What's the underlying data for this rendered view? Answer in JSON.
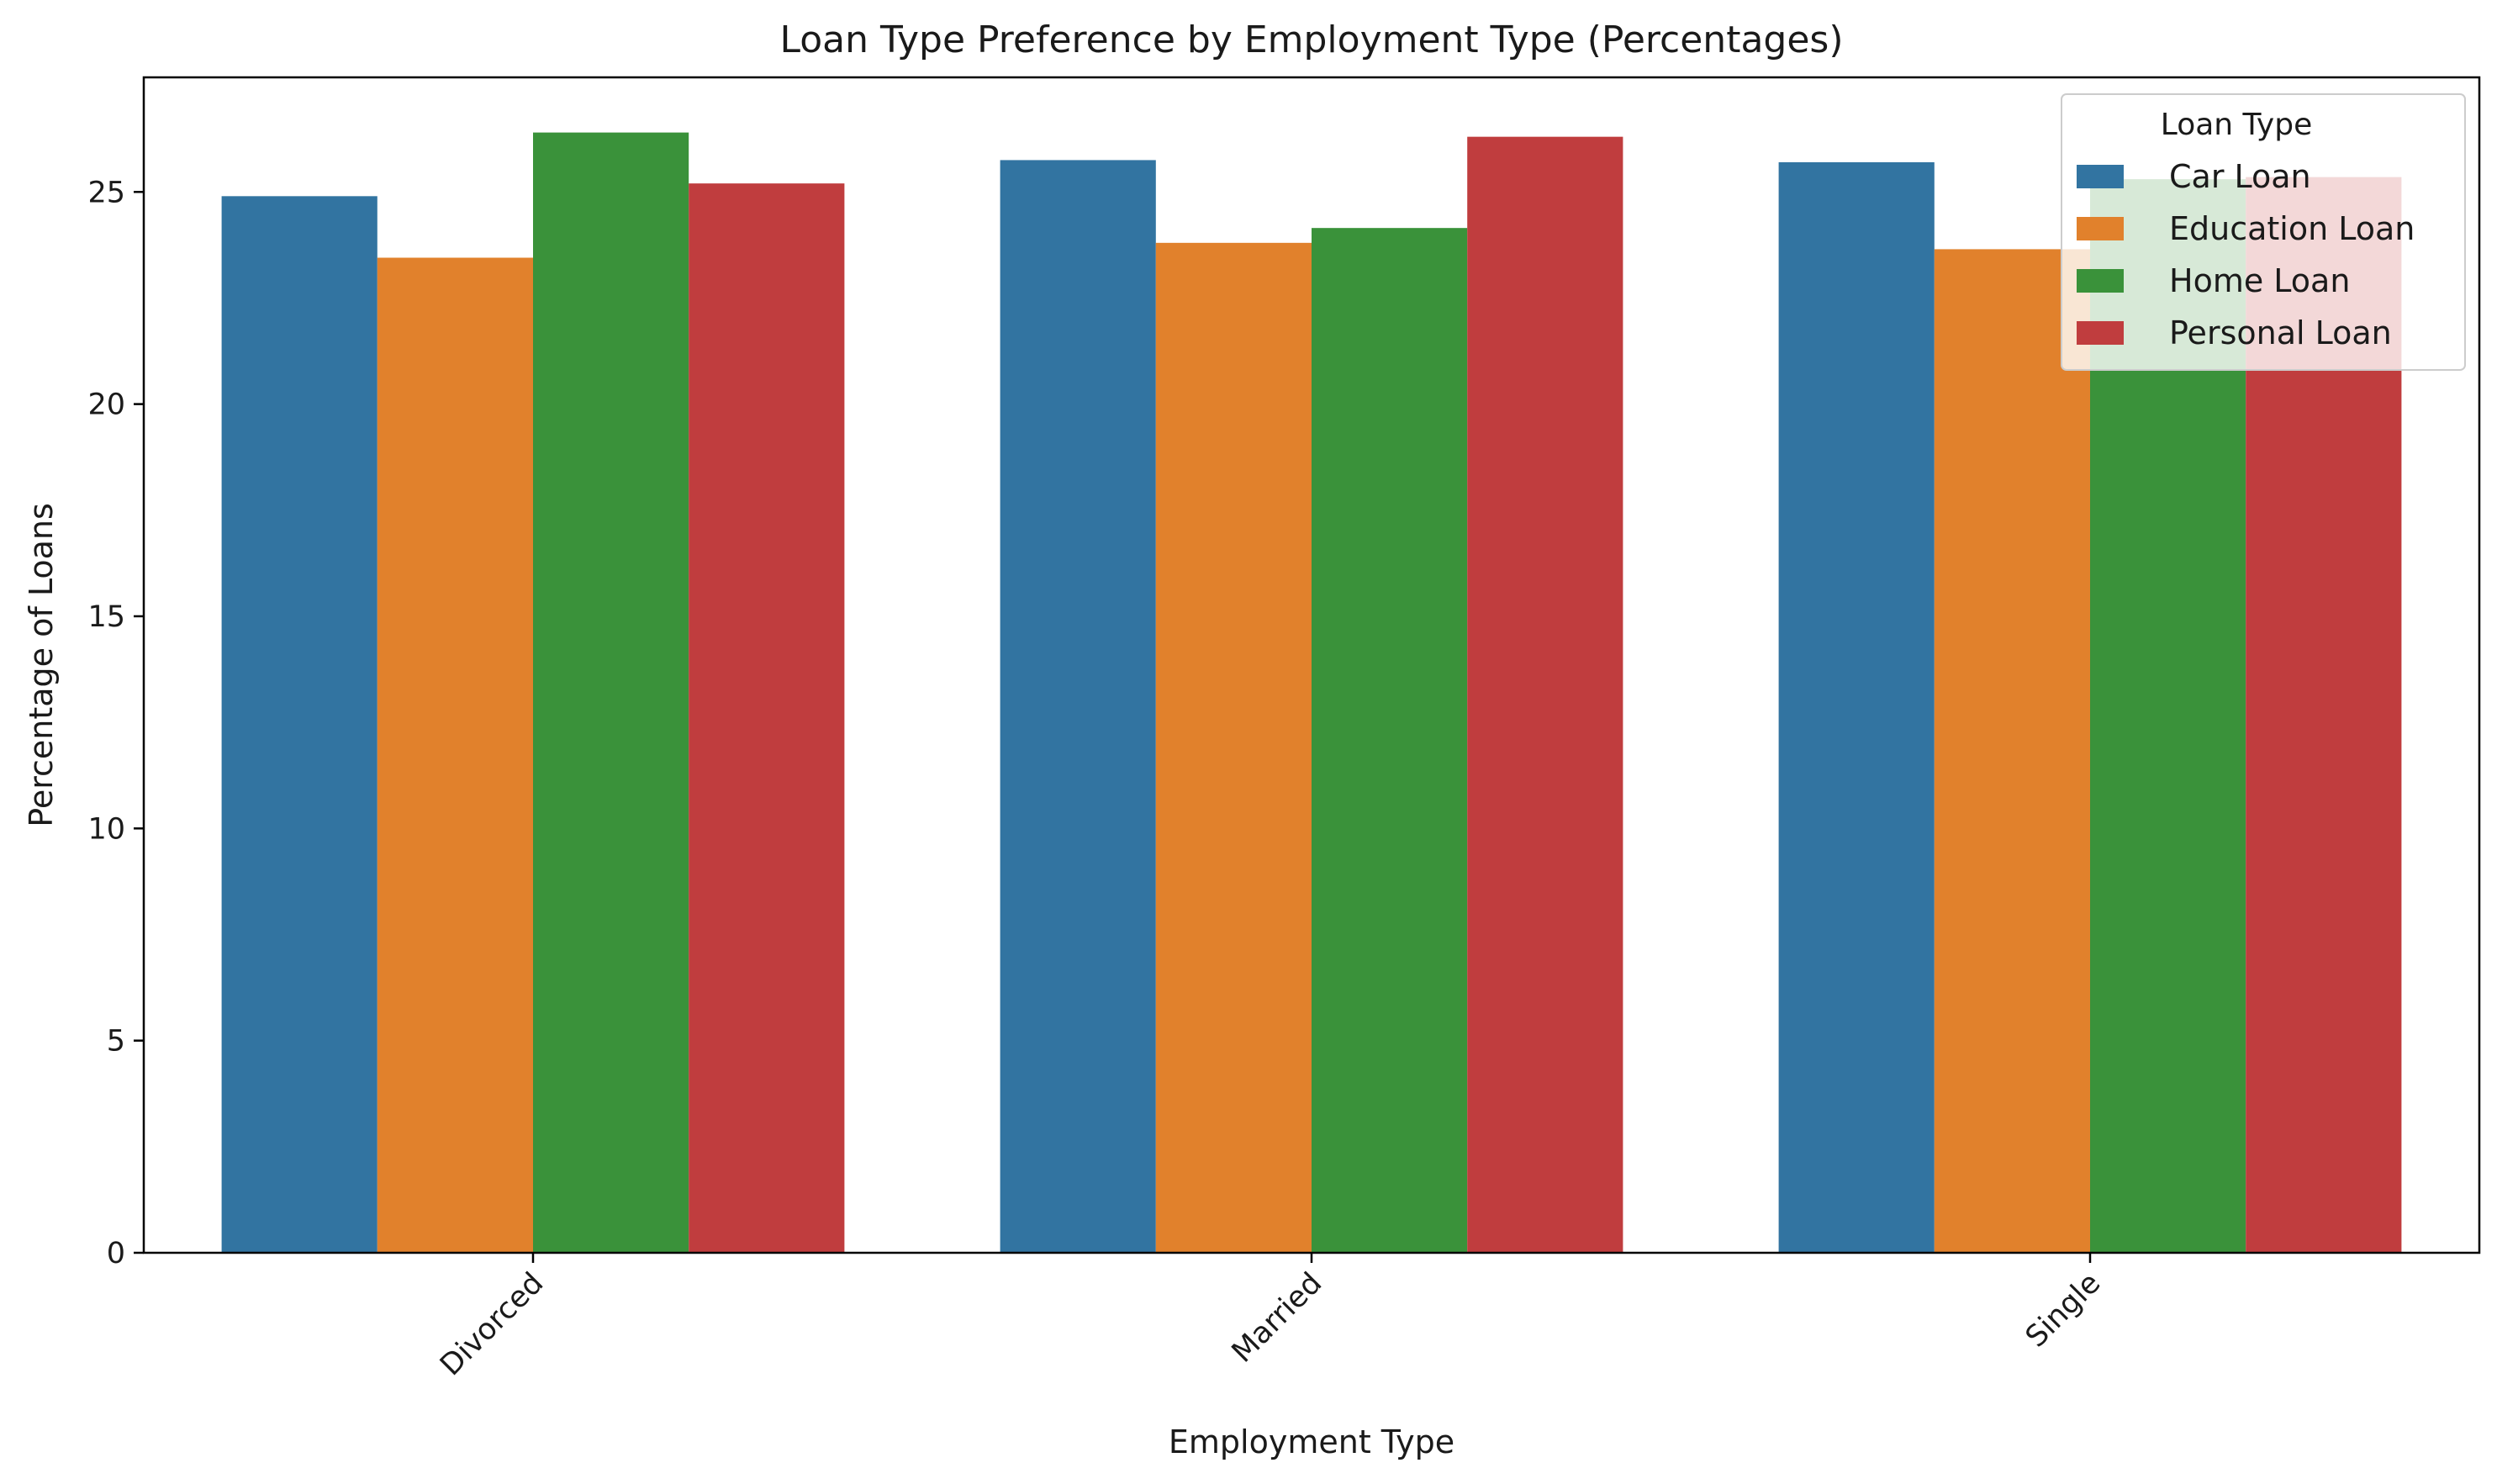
{
  "chart_data": {
    "type": "bar",
    "title": "Loan Type Preference by Employment Type (Percentages)",
    "xlabel": "Employment Type",
    "ylabel": "Percentage of Loans",
    "categories": [
      "Divorced",
      "Married",
      "Single"
    ],
    "series": [
      {
        "name": "Car Loan",
        "color": "#3274a1",
        "values": [
          24.9,
          25.75,
          25.7
        ]
      },
      {
        "name": "Education Loan",
        "color": "#e1812c",
        "values": [
          23.45,
          23.8,
          23.65
        ]
      },
      {
        "name": "Home Loan",
        "color": "#3a923a",
        "values": [
          26.4,
          24.15,
          25.3
        ]
      },
      {
        "name": "Personal Loan",
        "color": "#c03d3e",
        "values": [
          25.2,
          26.3,
          25.35
        ]
      }
    ],
    "ylim": [
      0,
      27.7
    ],
    "yticks": [
      0,
      5,
      10,
      15,
      20,
      25
    ],
    "grid": false,
    "legend": {
      "title": "Loan Type",
      "position": "top-right"
    }
  }
}
